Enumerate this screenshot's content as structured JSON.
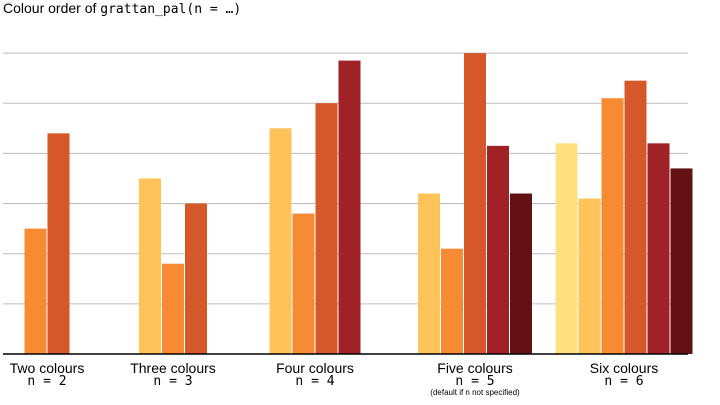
{
  "title": {
    "prefix": "Colour order of ",
    "code": "grattan_pal(n = …)"
  },
  "colors": {
    "c1": "#FFE07F",
    "c2": "#FFC35A",
    "c3": "#F68B33",
    "c4": "#D4582A",
    "c5": "#A02226",
    "c6": "#621214",
    "grid": "#bdbdbd"
  },
  "chart_data": {
    "type": "bar",
    "title": "Colour order of grattan_pal(n = …)",
    "ylim": [
      0,
      6.5
    ],
    "grid": true,
    "groups": [
      {
        "label": "Two colours",
        "n_label": "n = 2",
        "note": "",
        "values": [
          2.5,
          4.4
        ],
        "colors": [
          "#F68B33",
          "#D4582A"
        ]
      },
      {
        "label": "Three colours",
        "n_label": "n = 3",
        "note": "",
        "values": [
          3.5,
          1.8,
          3.0
        ],
        "colors": [
          "#FFC35A",
          "#F68B33",
          "#D4582A"
        ]
      },
      {
        "label": "Four colours",
        "n_label": "n = 4",
        "note": "",
        "values": [
          4.5,
          2.8,
          5.0,
          5.85
        ],
        "colors": [
          "#FFC35A",
          "#F68B33",
          "#D4582A",
          "#A02226"
        ]
      },
      {
        "label": "Five colours",
        "n_label": "n = 5",
        "note": "(default if n not specified)",
        "values": [
          3.2,
          2.1,
          6.0,
          4.15,
          3.2
        ],
        "colors": [
          "#FFC35A",
          "#F68B33",
          "#D4582A",
          "#A02226",
          "#621214"
        ]
      },
      {
        "label": "Six colours",
        "n_label": "n = 6",
        "note": "",
        "values": [
          4.2,
          3.1,
          5.1,
          5.45,
          4.2,
          3.7
        ],
        "colors": [
          "#FFE07F",
          "#FFC35A",
          "#F68B33",
          "#D4582A",
          "#A02226",
          "#621214"
        ]
      }
    ]
  }
}
